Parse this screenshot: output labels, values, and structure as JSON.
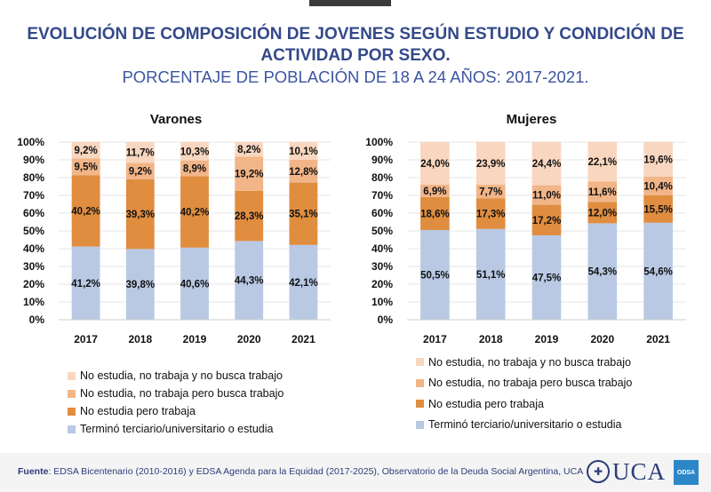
{
  "header": {
    "title_line1": "EVOLUCIÓN DE COMPOSICIÓN DE JOVENES SEGÚN ESTUDIO Y CONDICIÓN DE",
    "title_line2": "ACTIVIDAD POR SEXO.",
    "subtitle": "PORCENTAJE DE POBLACIÓN DE 18 A 24 AÑOS: 2017-2021."
  },
  "colors": {
    "estudia": "#b9c9e4",
    "trabaja": "#e08d40",
    "busca": "#f1b588",
    "no_busca": "#f9d6bf",
    "title": "#34498a"
  },
  "chart_data": [
    {
      "type": "bar",
      "stacked": true,
      "title": "Varones",
      "categories": [
        "2017",
        "2018",
        "2019",
        "2020",
        "2021"
      ],
      "ylim": [
        0,
        100
      ],
      "yticks": [
        "0%",
        "10%",
        "20%",
        "30%",
        "40%",
        "50%",
        "60%",
        "70%",
        "80%",
        "90%",
        "100%"
      ],
      "series": [
        {
          "name": "Terminó terciario/universitario o estudia",
          "values": [
            41.2,
            39.8,
            40.6,
            44.3,
            42.1
          ],
          "labels": [
            "41,2%",
            "39,8%",
            "40,6%",
            "44,3%",
            "42,1%"
          ],
          "color": "#b9c9e4"
        },
        {
          "name": "No estudia pero trabaja",
          "values": [
            40.2,
            39.3,
            40.2,
            28.3,
            35.1
          ],
          "labels": [
            "40,2%",
            "39,3%",
            "40,2%",
            "28,3%",
            "35,1%"
          ],
          "color": "#e08d40"
        },
        {
          "name": "No estudia, no trabaja pero busca trabajo",
          "values": [
            9.5,
            9.2,
            8.9,
            19.2,
            12.8
          ],
          "labels": [
            "9,5%",
            "9,2%",
            "8,9%",
            "19,2%",
            "12,8%"
          ],
          "color": "#f1b588"
        },
        {
          "name": "No estudia, no trabaja y no busca trabajo",
          "values": [
            9.2,
            11.7,
            10.3,
            8.2,
            10.1
          ],
          "labels": [
            "9,2%",
            "11,7%",
            "10,3%",
            "8,2%",
            "10,1%"
          ],
          "color": "#f9d6bf"
        }
      ],
      "legend_position": "bottom"
    },
    {
      "type": "bar",
      "stacked": true,
      "title": "Mujeres",
      "categories": [
        "2017",
        "2018",
        "2019",
        "2020",
        "2021"
      ],
      "ylim": [
        0,
        100
      ],
      "yticks": [
        "0%",
        "10%",
        "20%",
        "30%",
        "40%",
        "50%",
        "60%",
        "70%",
        "80%",
        "90%",
        "100%"
      ],
      "series": [
        {
          "name": "Terminó terciario/universitario o estudia",
          "values": [
            50.5,
            51.1,
            47.5,
            54.3,
            54.6
          ],
          "labels": [
            "50,5%",
            "51,1%",
            "47,5%",
            "54,3%",
            "54,6%"
          ],
          "color": "#b9c9e4"
        },
        {
          "name": "No estudia pero trabaja",
          "values": [
            18.6,
            17.3,
            17.2,
            12.0,
            15.5
          ],
          "labels": [
            "18,6%",
            "17,3%",
            "17,2%",
            "12,0%",
            "15,5%"
          ],
          "color": "#e08d40"
        },
        {
          "name": "No estudia, no trabaja pero busca trabajo",
          "values": [
            6.9,
            7.7,
            11.0,
            11.6,
            10.4
          ],
          "labels": [
            "6,9%",
            "7,7%",
            "11,0%",
            "11,6%",
            "10,4%"
          ],
          "color": "#f1b588"
        },
        {
          "name": "No estudia, no trabaja y no busca trabajo",
          "values": [
            24.0,
            23.9,
            24.4,
            22.1,
            19.6
          ],
          "labels": [
            "24,0%",
            "23,9%",
            "24,4%",
            "22,1%",
            "19,6%"
          ],
          "color": "#f9d6bf"
        }
      ],
      "legend_position": "bottom"
    }
  ],
  "legend": [
    {
      "label": "No estudia, no trabaja y no busca trabajo",
      "color": "#f9d6bf"
    },
    {
      "label": "No estudia, no trabaja pero busca trabajo",
      "color": "#f1b588"
    },
    {
      "label": "No estudia pero trabaja",
      "color": "#e08d40"
    },
    {
      "label": "Terminó terciario/universitario o estudia",
      "color": "#b9c9e4"
    }
  ],
  "footer": {
    "source_label": "Fuente",
    "source_text": ": EDSA Bicentenario (2010-2016) y EDSA Agenda para la Equidad (2017-2025), Observatorio de la Deuda Social Argentina, UCA",
    "logo_text": "UCA",
    "badge_text": "ODSA"
  }
}
